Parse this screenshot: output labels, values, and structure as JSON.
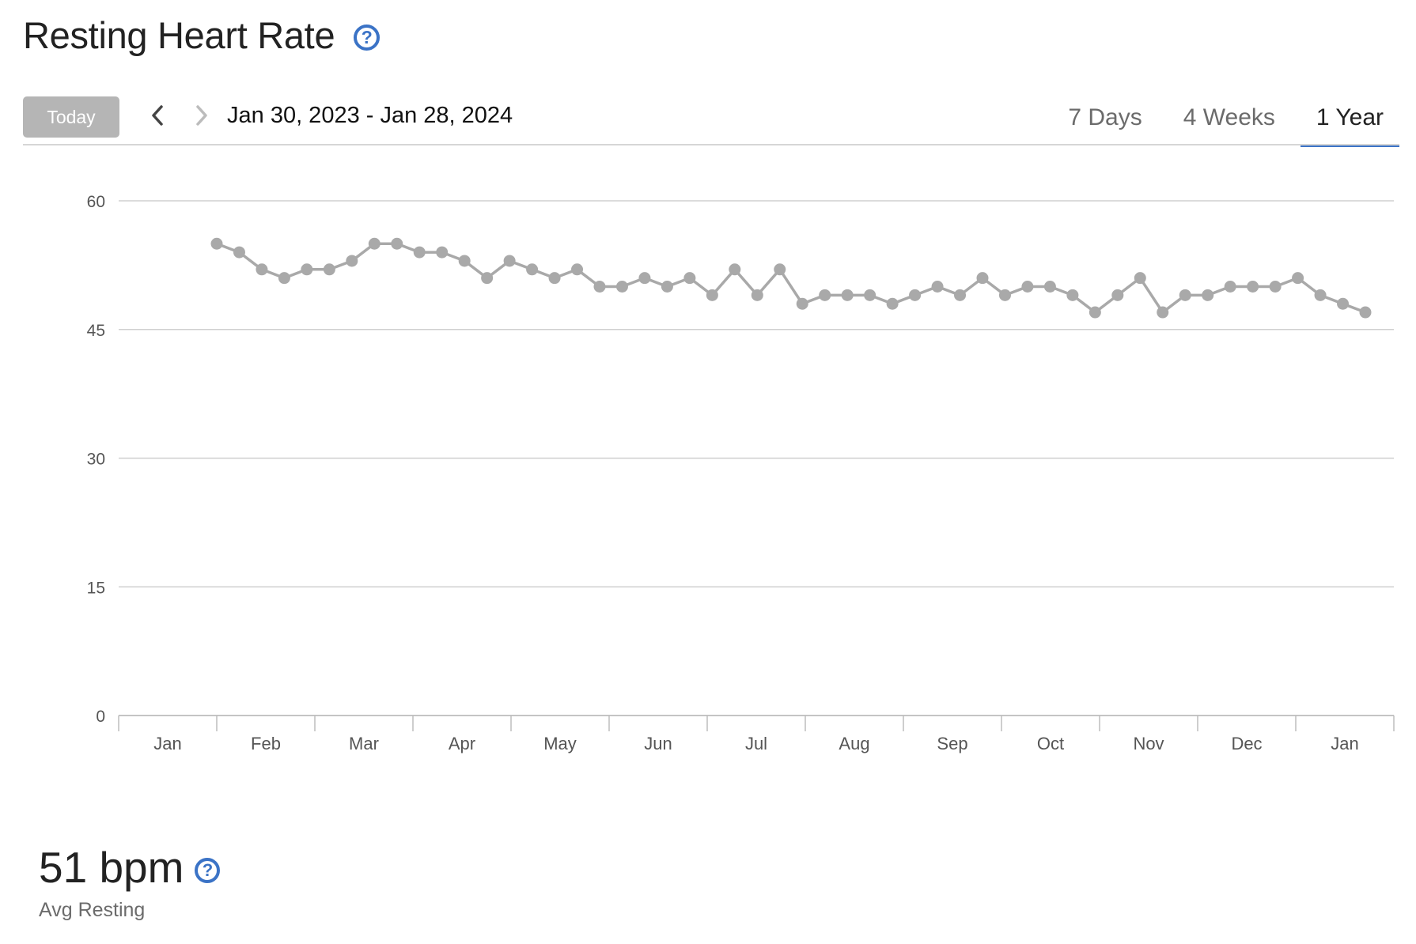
{
  "header": {
    "title": "Resting Heart Rate",
    "help_icon": "question-circle-icon"
  },
  "toolbar": {
    "today_label": "Today",
    "prev_icon": "chevron-left-icon",
    "next_icon": "chevron-right-icon",
    "date_range": "Jan 30, 2023 - Jan 28, 2024",
    "range_tabs": [
      {
        "label": "7 Days",
        "active": false
      },
      {
        "label": "4 Weeks",
        "active": false
      },
      {
        "label": "1 Year",
        "active": true
      }
    ]
  },
  "colors": {
    "accent": "#3b73c6",
    "line": "#a9a9a9",
    "grid": "#d0d0d0",
    "today_button": "#b5b5b5"
  },
  "chart_data": {
    "type": "line",
    "title": "",
    "xlabel": "",
    "ylabel": "",
    "ylim": [
      0,
      60
    ],
    "y_ticks": [
      0,
      15,
      30,
      45,
      60
    ],
    "x_tick_labels": [
      "Jan",
      "Feb",
      "Mar",
      "Apr",
      "May",
      "Jun",
      "Jul",
      "Aug",
      "Sep",
      "Oct",
      "Nov",
      "Dec",
      "Jan"
    ],
    "grid": true,
    "legend": "none",
    "series": [
      {
        "x": [
          "2023-01-30",
          "2023-02-06",
          "2023-02-13",
          "2023-02-20",
          "2023-02-27",
          "2023-03-06",
          "2023-03-13",
          "2023-03-20",
          "2023-03-27",
          "2023-04-03",
          "2023-04-10",
          "2023-04-17",
          "2023-04-24",
          "2023-05-01",
          "2023-05-08",
          "2023-05-15",
          "2023-05-22",
          "2023-05-29",
          "2023-06-05",
          "2023-06-12",
          "2023-06-19",
          "2023-06-26",
          "2023-07-03",
          "2023-07-10",
          "2023-07-17",
          "2023-07-24",
          "2023-07-31",
          "2023-08-07",
          "2023-08-14",
          "2023-08-21",
          "2023-08-28",
          "2023-09-04",
          "2023-09-11",
          "2023-09-18",
          "2023-09-25",
          "2023-10-02",
          "2023-10-09",
          "2023-10-16",
          "2023-10-23",
          "2023-10-30",
          "2023-11-06",
          "2023-11-13",
          "2023-11-20",
          "2023-11-27",
          "2023-12-04",
          "2023-12-11",
          "2023-12-18",
          "2023-12-25",
          "2024-01-01",
          "2024-01-08",
          "2024-01-15",
          "2024-01-22"
        ],
        "values": [
          55,
          54,
          52,
          51,
          52,
          52,
          53,
          55,
          55,
          54,
          54,
          53,
          51,
          53,
          52,
          51,
          52,
          50,
          50,
          51,
          50,
          51,
          49,
          52,
          49,
          52,
          48,
          49,
          49,
          49,
          48,
          49,
          50,
          49,
          51,
          49,
          50,
          50,
          49,
          47,
          49,
          51,
          47,
          49,
          49,
          50,
          50,
          50,
          51,
          49,
          48,
          47
        ]
      }
    ]
  },
  "summary": {
    "value": "51 bpm",
    "label": "Avg Resting",
    "help_icon": "question-circle-icon"
  }
}
